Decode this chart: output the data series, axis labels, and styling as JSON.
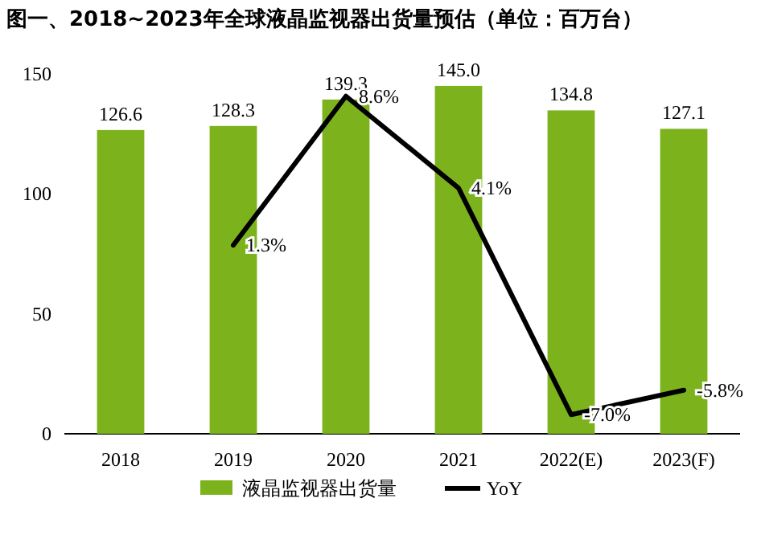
{
  "chart_data": {
    "type": "bar",
    "title": "图一、2018~2023年全球液晶监视器出货量预估（单位：百万台）",
    "categories": [
      "2018",
      "2019",
      "2020",
      "2021",
      "2022(E)",
      "2023(F)"
    ],
    "series": [
      {
        "name": "液晶监视器出货量",
        "color": "#7cb31c",
        "values": [
          126.6,
          128.3,
          139.3,
          145.0,
          134.8,
          127.1
        ],
        "value_labels": [
          "126.6",
          "128.3",
          "139.3",
          "145.0",
          "134.8",
          "127.1"
        ]
      },
      {
        "name": "YoY",
        "type": "line",
        "axis": "y2",
        "color": "#000000",
        "values": [
          null,
          1.3,
          8.6,
          4.1,
          -7.0,
          -5.8
        ],
        "value_labels": [
          null,
          "1.3%",
          "8.6%",
          "4.1%",
          "-7.0%",
          "-5.8%"
        ]
      }
    ],
    "ylim": [
      0,
      150
    ],
    "yticks": [
      0,
      50,
      100,
      150
    ],
    "legend": "bottom"
  }
}
